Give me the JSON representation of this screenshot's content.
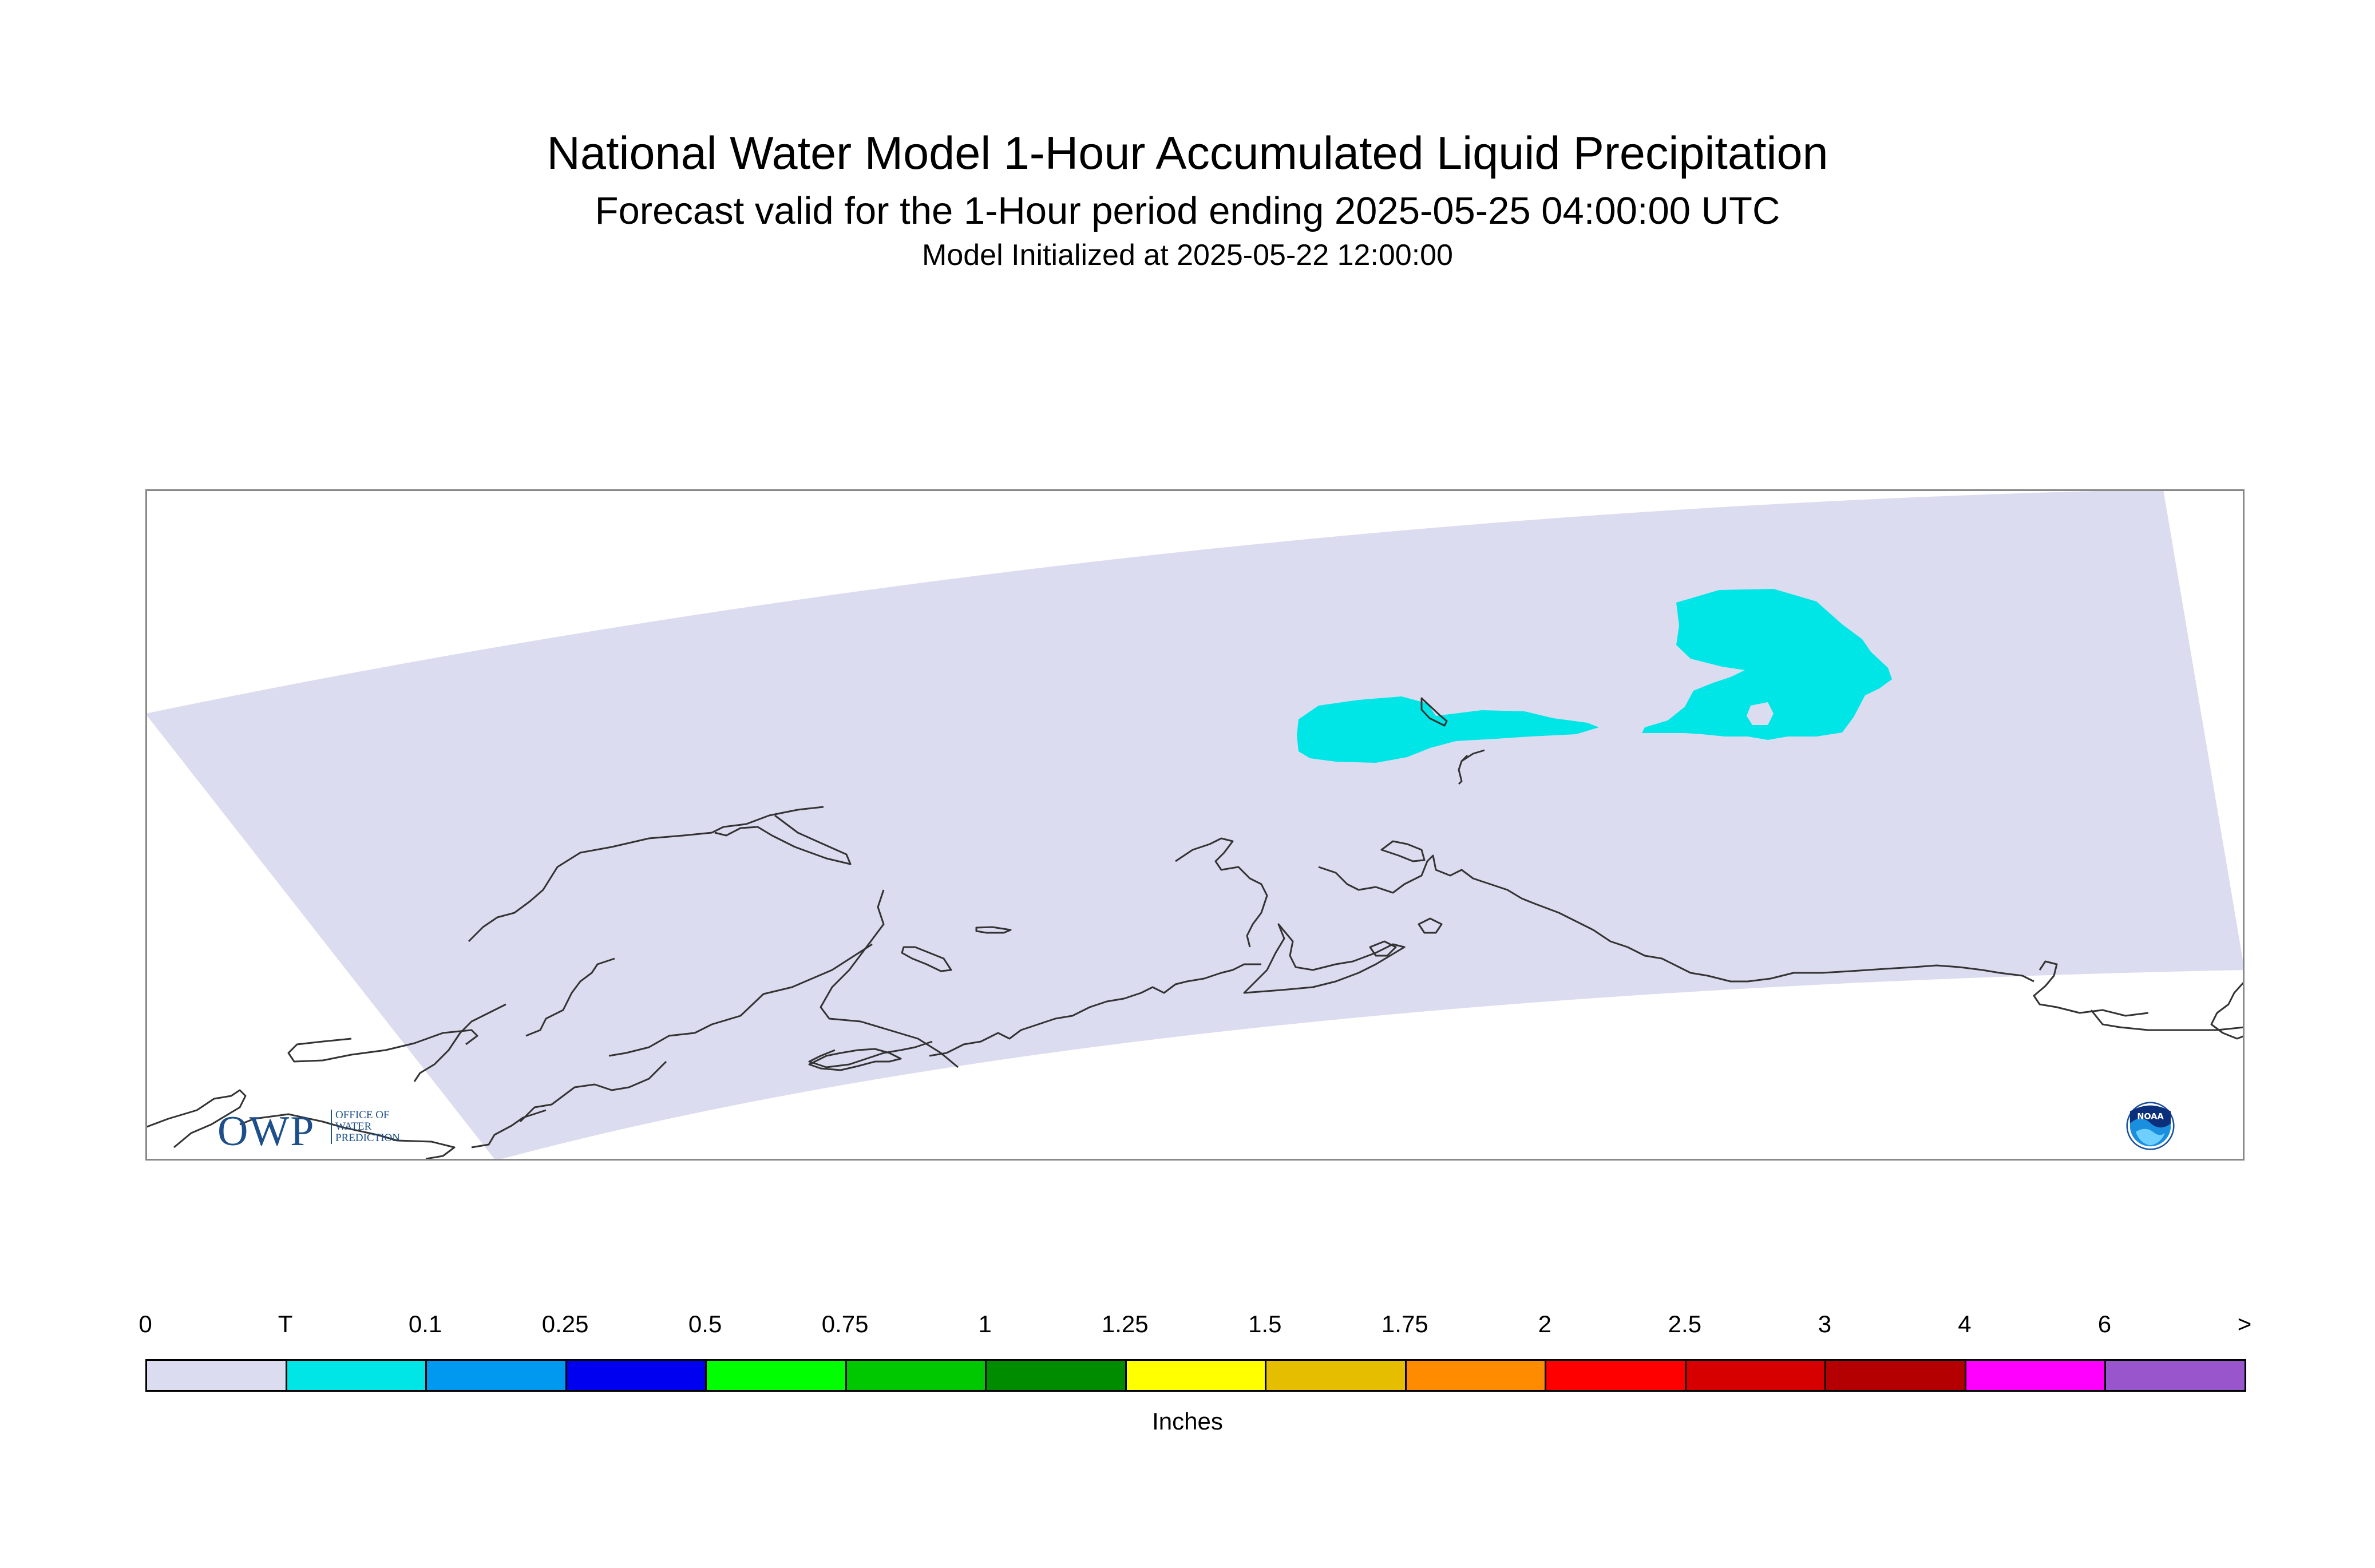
{
  "title": {
    "line1": "National Water Model 1-Hour Accumulated Liquid Precipitation",
    "line2": "Forecast valid for the 1-Hour period ending 2025-05-25 04:00:00 UTC",
    "line3": "Model Initialized at 2025-05-22 12:00:00"
  },
  "legend": {
    "labels": [
      "0",
      "T",
      "0.1",
      "0.25",
      "0.5",
      "0.75",
      "1",
      "1.25",
      "1.5",
      "1.75",
      "2",
      "2.5",
      "3",
      "4",
      "6",
      ">"
    ],
    "colors": [
      "#dcdcf0",
      "#00e6e6",
      "#0099f0",
      "#0000f0",
      "#00ff00",
      "#00c800",
      "#008c00",
      "#ffff00",
      "#e6be00",
      "#ff8c00",
      "#ff0000",
      "#d70000",
      "#b40000",
      "#ff00ff",
      "#9955cc"
    ],
    "units": "Inches"
  },
  "map": {
    "domain_color": "#dcdcf0",
    "precip_color": "#00e6e6",
    "coastline_color": "#333333",
    "frame_color": "#888888"
  },
  "logos": {
    "owp": {
      "initials": "OWP",
      "line1": "OFFICE OF",
      "line2": "WATER",
      "line3": "PREDICTION"
    },
    "noaa": {
      "text": "NOAA"
    }
  }
}
